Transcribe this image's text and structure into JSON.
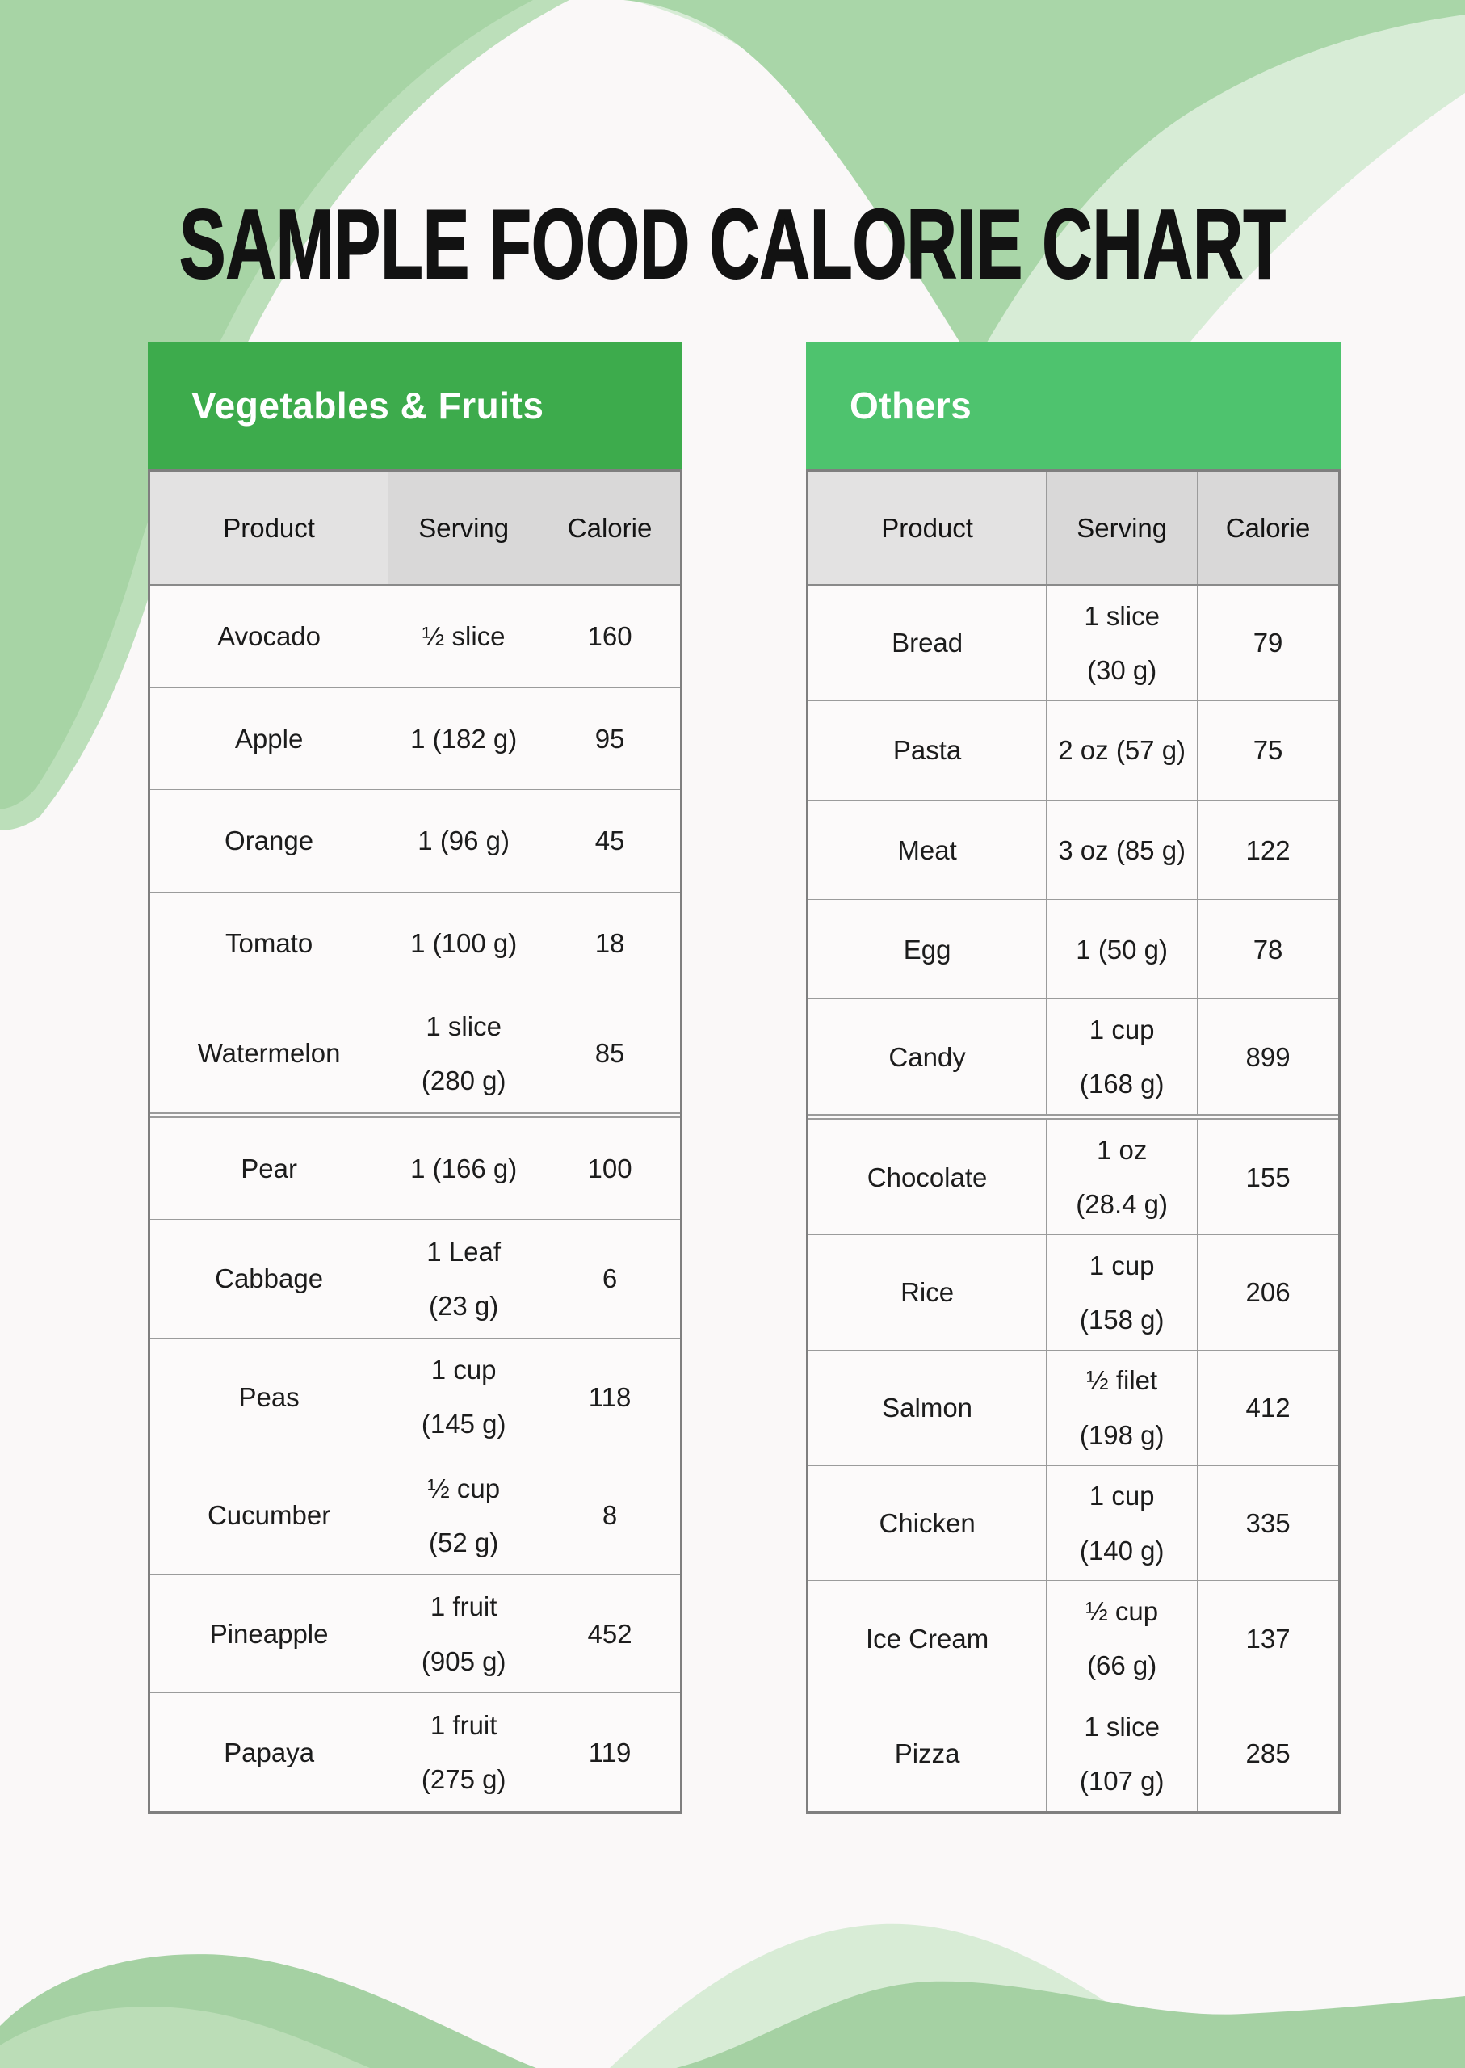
{
  "page": {
    "title": "SAMPLE FOOD CALORIE CHART",
    "background": "#FAF8F8"
  },
  "colors": {
    "left_table_accent": "#3DAB4C",
    "right_table_accent": "#4EC36E",
    "header_row_gray_product": "#E3E2E2",
    "header_row_gray_other": "#D9D8D8",
    "grid_border_gray": "#9B9B9B",
    "outer_border_gray": "#7F7F7F",
    "wave_green_medium": "#A7D4A5",
    "wave_green_soft": "#BCDFBA",
    "wave_green_light": "#D7ECD6",
    "bottom_wave_medium": "#A5D1A3",
    "bottom_wave_soft": "#BBDDB7",
    "bottom_wave_light": "#D8ECD6"
  },
  "tables": [
    {
      "title": "Vegetables & Fruits",
      "accent": "#3DAB4C",
      "headers": [
        "Product",
        "Serving",
        "Calorie"
      ],
      "rows": [
        {
          "product": "Avocado",
          "serving": [
            "½ slice"
          ],
          "calorie": "160"
        },
        {
          "product": "Apple",
          "serving": [
            "1 (182 g)"
          ],
          "calorie": "95"
        },
        {
          "product": "Orange",
          "serving": [
            "1 (96 g)"
          ],
          "calorie": "45"
        },
        {
          "product": "Tomato",
          "serving": [
            "1 (100 g)"
          ],
          "calorie": "18"
        },
        {
          "product": "Watermelon",
          "serving": [
            "1 slice",
            "(280 g)"
          ],
          "calorie": "85"
        },
        {
          "product": "Pear",
          "serving": [
            "1 (166 g)"
          ],
          "calorie": "100",
          "break_before": true
        },
        {
          "product": "Cabbage",
          "serving": [
            "1 Leaf",
            "(23 g)"
          ],
          "calorie": "6"
        },
        {
          "product": "Peas",
          "serving": [
            "1 cup",
            "(145 g)"
          ],
          "calorie": "118"
        },
        {
          "product": "Cucumber",
          "serving": [
            "½ cup",
            "(52 g)"
          ],
          "calorie": "8"
        },
        {
          "product": "Pineapple",
          "serving": [
            "1 fruit",
            "(905 g)"
          ],
          "calorie": "452"
        },
        {
          "product": "Papaya",
          "serving": [
            "1 fruit",
            "(275 g)"
          ],
          "calorie": "119"
        }
      ]
    },
    {
      "title": "Others",
      "accent": "#4EC36E",
      "headers": [
        "Product",
        "Serving",
        "Calorie"
      ],
      "rows": [
        {
          "product": "Bread",
          "serving": [
            "1 slice",
            "(30 g)"
          ],
          "calorie": "79"
        },
        {
          "product": "Pasta",
          "serving": [
            "2 oz (57 g)"
          ],
          "calorie": "75"
        },
        {
          "product": "Meat",
          "serving": [
            "3 oz (85 g)"
          ],
          "calorie": "122"
        },
        {
          "product": "Egg",
          "serving": [
            "1 (50 g)"
          ],
          "calorie": "78"
        },
        {
          "product": "Candy",
          "serving": [
            "1 cup",
            "(168 g)"
          ],
          "calorie": "899"
        },
        {
          "product": "Chocolate",
          "serving": [
            "1 oz",
            "(28.4 g)"
          ],
          "calorie": "155",
          "break_before": true
        },
        {
          "product": "Rice",
          "serving": [
            "1 cup",
            "(158 g)"
          ],
          "calorie": "206"
        },
        {
          "product": "Salmon",
          "serving": [
            "½ filet",
            "(198 g)"
          ],
          "calorie": "412"
        },
        {
          "product": "Chicken",
          "serving": [
            "1 cup",
            "(140 g)"
          ],
          "calorie": "335"
        },
        {
          "product": "Ice Cream",
          "serving": [
            "½ cup",
            "(66 g)"
          ],
          "calorie": "137"
        },
        {
          "product": "Pizza",
          "serving": [
            "1 slice",
            "(107 g)"
          ],
          "calorie": "285"
        }
      ]
    }
  ]
}
